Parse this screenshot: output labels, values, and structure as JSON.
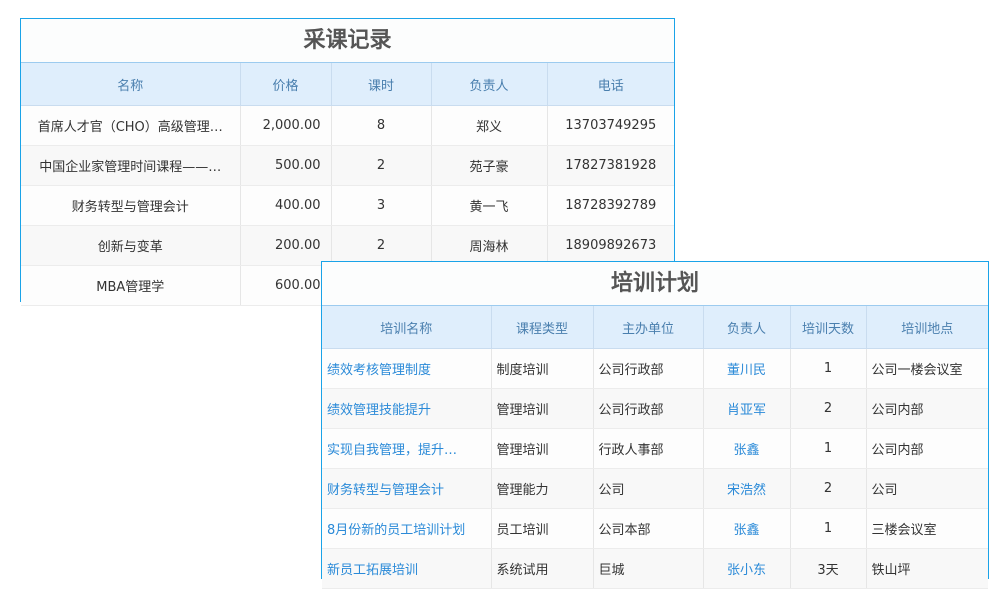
{
  "purchase": {
    "title": "采课记录",
    "columns": [
      "名称",
      "价格",
      "课时",
      "负责人",
      "电话"
    ],
    "rows": [
      [
        "首席人才官（CHO）高级管理…",
        "2,000.00",
        "8",
        "郑义",
        "13703749295"
      ],
      [
        "中国企业家管理时间课程——…",
        "500.00",
        "2",
        "苑子豪",
        "17827381928"
      ],
      [
        "财务转型与管理会计",
        "400.00",
        "3",
        "黄一飞",
        "18728392789"
      ],
      [
        "创新与变革",
        "200.00",
        "2",
        "周海林",
        "18909892673"
      ],
      [
        "MBA管理学",
        "600.00",
        "",
        "",
        ""
      ]
    ]
  },
  "training": {
    "title": "培训计划",
    "columns": [
      "培训名称",
      "课程类型",
      "主办单位",
      "负责人",
      "培训天数",
      "培训地点"
    ],
    "rows": [
      [
        "绩效考核管理制度",
        "制度培训",
        "公司行政部",
        "董川民",
        "1",
        "公司一楼会议室"
      ],
      [
        "绩效管理技能提升",
        "管理培训",
        "公司行政部",
        "肖亚军",
        "2",
        "公司内部"
      ],
      [
        "实现自我管理，提升…",
        "管理培训",
        "行政人事部",
        "张鑫",
        "1",
        "公司内部"
      ],
      [
        "财务转型与管理会计",
        "管理能力",
        "公司",
        "宋浩然",
        "2",
        "公司"
      ],
      [
        "8月份新的员工培训计划",
        "员工培训",
        "公司本部",
        "张鑫",
        "1",
        "三楼会议室"
      ],
      [
        "新员工拓展培训",
        "系统试用",
        "巨城",
        "张小东",
        "3天",
        "铁山坪"
      ]
    ]
  },
  "colors": {
    "border": "#1aa3e8",
    "header_bg": "#dfeefc",
    "link": "#2a8ad8"
  }
}
